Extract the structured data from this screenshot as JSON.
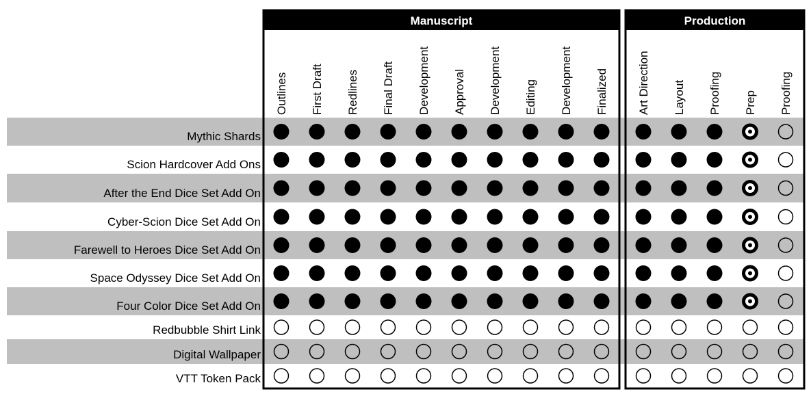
{
  "groups": [
    {
      "title": "Manuscript",
      "columns": [
        "Outlines",
        "First Draft",
        "Redlines",
        "Final Draft",
        "Development",
        "Approval",
        "Development",
        "Editing",
        "Development",
        "Finalized"
      ]
    },
    {
      "title": "Production",
      "columns": [
        "Art Direction",
        "Layout",
        "Proofing",
        "Prep",
        "Proofing"
      ]
    }
  ],
  "rows": [
    {
      "label": "Mythic Shards",
      "status": [
        "full",
        "full",
        "full",
        "full",
        "full",
        "full",
        "full",
        "full",
        "full",
        "full",
        "full",
        "full",
        "full",
        "partial",
        "empty"
      ]
    },
    {
      "label": "Scion Hardcover Add Ons",
      "status": [
        "full",
        "full",
        "full",
        "full",
        "full",
        "full",
        "full",
        "full",
        "full",
        "full",
        "full",
        "full",
        "full",
        "partial",
        "empty"
      ]
    },
    {
      "label": "After the End Dice Set Add On",
      "status": [
        "full",
        "full",
        "full",
        "full",
        "full",
        "full",
        "full",
        "full",
        "full",
        "full",
        "full",
        "full",
        "full",
        "partial",
        "empty"
      ]
    },
    {
      "label": "Cyber-Scion Dice Set Add On",
      "status": [
        "full",
        "full",
        "full",
        "full",
        "full",
        "full",
        "full",
        "full",
        "full",
        "full",
        "full",
        "full",
        "full",
        "partial",
        "empty"
      ]
    },
    {
      "label": "Farewell to Heroes Dice Set Add On",
      "status": [
        "full",
        "full",
        "full",
        "full",
        "full",
        "full",
        "full",
        "full",
        "full",
        "full",
        "full",
        "full",
        "full",
        "partial",
        "empty"
      ]
    },
    {
      "label": "Space Odyssey Dice Set Add On",
      "status": [
        "full",
        "full",
        "full",
        "full",
        "full",
        "full",
        "full",
        "full",
        "full",
        "full",
        "full",
        "full",
        "full",
        "partial",
        "empty"
      ]
    },
    {
      "label": "Four Color Dice Set Add On",
      "status": [
        "full",
        "full",
        "full",
        "full",
        "full",
        "full",
        "full",
        "full",
        "full",
        "full",
        "full",
        "full",
        "full",
        "partial",
        "empty"
      ]
    },
    {
      "label": "Redbubble Shirt Link",
      "status": [
        "empty",
        "empty",
        "empty",
        "empty",
        "empty",
        "empty",
        "empty",
        "empty",
        "empty",
        "empty",
        "empty",
        "empty",
        "empty",
        "empty",
        "empty"
      ]
    },
    {
      "label": "Digital Wallpaper",
      "status": [
        "empty",
        "empty",
        "empty",
        "empty",
        "empty",
        "empty",
        "empty",
        "empty",
        "empty",
        "empty",
        "empty",
        "empty",
        "empty",
        "empty",
        "empty"
      ]
    },
    {
      "label": "VTT Token Pack",
      "status": [
        "empty",
        "empty",
        "empty",
        "empty",
        "empty",
        "empty",
        "empty",
        "empty",
        "empty",
        "empty",
        "empty",
        "empty",
        "empty",
        "empty",
        "empty"
      ]
    }
  ]
}
